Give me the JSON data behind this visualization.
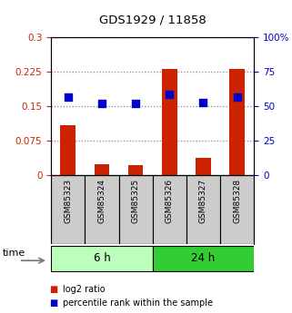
{
  "title": "GDS1929 / 11858",
  "samples": [
    "GSM85323",
    "GSM85324",
    "GSM85325",
    "GSM85326",
    "GSM85327",
    "GSM85328"
  ],
  "log2_ratio": [
    0.11,
    0.025,
    0.022,
    0.232,
    0.037,
    0.232
  ],
  "percentile_rank": [
    57,
    52,
    52,
    59,
    53,
    57
  ],
  "bar_color": "#cc2200",
  "dot_color": "#0000cc",
  "left_ylim": [
    0,
    0.3
  ],
  "right_ylim": [
    0,
    100
  ],
  "left_yticks": [
    0,
    0.075,
    0.15,
    0.225,
    0.3
  ],
  "right_yticks": [
    0,
    25,
    50,
    75,
    100
  ],
  "left_ytick_labels": [
    "0",
    "0.075",
    "0.15",
    "0.225",
    "0.3"
  ],
  "right_ytick_labels": [
    "0",
    "25",
    "50",
    "75",
    "100%"
  ],
  "groups": [
    {
      "label": "6 h",
      "color_light": "#ccffcc",
      "color_dark": "#44dd44"
    },
    {
      "label": "24 h",
      "color_light": "#44dd44",
      "color_dark": "#44dd44"
    }
  ],
  "time_label": "time",
  "grid_color": "#888888",
  "bg_color": "#ffffff",
  "bar_width": 0.45,
  "dot_size": 30
}
